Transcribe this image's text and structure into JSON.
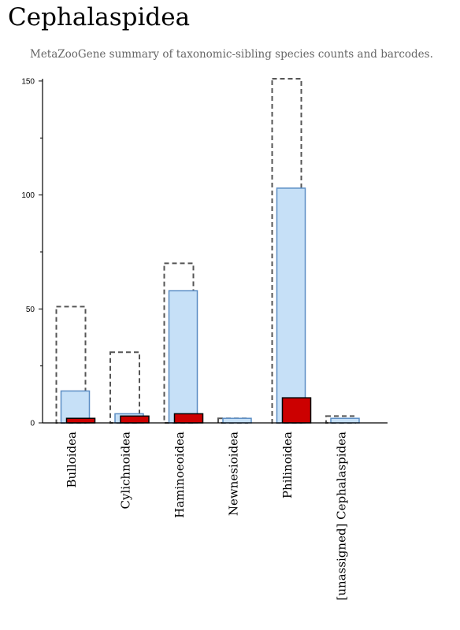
{
  "title": "Cephalaspidea",
  "subtitle": "MetaZooGene summary of taxonomic-sibling species counts and barcodes.",
  "colors": {
    "outline_stroke": "#555555",
    "light_fill": "#c6e0f7",
    "light_stroke": "#5b8dc4",
    "dark_fill": "#cc0000",
    "dark_stroke": "#000000",
    "axis": "#000000"
  },
  "chart_data": {
    "type": "bar",
    "categories": [
      "Bulloidea",
      "Cylichnoidea",
      "Haminoeoidea",
      "Newnesioidea",
      "Philinoidea",
      "[unassigned] Cephalaspidea"
    ],
    "series": [
      {
        "style": "dashed-outline",
        "values": [
          51,
          31,
          70,
          2,
          151,
          3
        ]
      },
      {
        "style": "light-blue",
        "values": [
          14,
          4,
          58,
          2,
          103,
          2
        ]
      },
      {
        "style": "red",
        "values": [
          2,
          3,
          4,
          0,
          11,
          0
        ]
      }
    ],
    "ylim": [
      0,
      151
    ],
    "yticks": [
      0,
      50,
      100,
      150
    ],
    "xlabel": "",
    "ylabel": "",
    "grid": false
  }
}
